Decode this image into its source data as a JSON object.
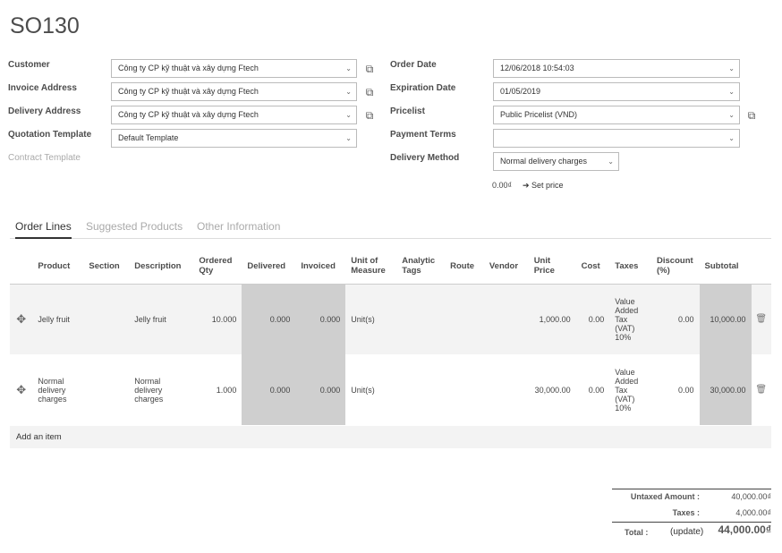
{
  "order": {
    "name": "SO130"
  },
  "left_fields": {
    "customer": {
      "label": "Customer",
      "value": "Công ty CP kỹ thuật và xây dựng Ftech"
    },
    "invoice_address": {
      "label": "Invoice Address",
      "value": "Công ty CP kỹ thuật và xây dựng Ftech"
    },
    "delivery_address": {
      "label": "Delivery Address",
      "value": "Công ty CP kỹ thuật và xây dựng Ftech"
    },
    "quotation_template": {
      "label": "Quotation Template",
      "value": "Default Template"
    },
    "contract_template": {
      "label": "Contract Template"
    }
  },
  "right_fields": {
    "order_date": {
      "label": "Order Date",
      "value": "12/06/2018 10:54:03"
    },
    "expiration_date": {
      "label": "Expiration Date",
      "value": "01/05/2019"
    },
    "pricelist": {
      "label": "Pricelist",
      "value": "Public Pricelist (VND)"
    },
    "payment_terms": {
      "label": "Payment Terms",
      "value": ""
    },
    "delivery_method": {
      "label": "Delivery Method",
      "value": "Normal delivery charges"
    },
    "delivery_amount": "0.00₫",
    "set_price_label": "➔ Set price"
  },
  "tabs": [
    "Order Lines",
    "Suggested Products",
    "Other Information"
  ],
  "columns": {
    "product": "Product",
    "section": "Section",
    "description": "Description",
    "ordered_qty": "Ordered Qty",
    "delivered": "Delivered",
    "invoiced": "Invoiced",
    "uom": "Unit of Measure",
    "analytic_tags": "Analytic Tags",
    "route": "Route",
    "vendor": "Vendor",
    "unit_price": "Unit Price",
    "cost": "Cost",
    "taxes": "Taxes",
    "discount": "Discount (%)",
    "subtotal": "Subtotal"
  },
  "lines": [
    {
      "product": "Jelly fruit",
      "section": "",
      "description": "Jelly fruit",
      "ordered_qty": "10.000",
      "delivered": "0.000",
      "invoiced": "0.000",
      "uom": "Unit(s)",
      "analytic_tags": "",
      "route": "",
      "vendor": "",
      "unit_price": "1,000.00",
      "cost": "0.00",
      "taxes": "Value Added Tax (VAT) 10%",
      "discount": "0.00",
      "subtotal": "10,000.00"
    },
    {
      "product": "Normal delivery charges",
      "section": "",
      "description": "Normal delivery charges",
      "ordered_qty": "1.000",
      "delivered": "0.000",
      "invoiced": "0.000",
      "uom": "Unit(s)",
      "analytic_tags": "",
      "route": "",
      "vendor": "",
      "unit_price": "30,000.00",
      "cost": "0.00",
      "taxes": "Value Added Tax (VAT) 10%",
      "discount": "0.00",
      "subtotal": "30,000.00"
    }
  ],
  "add_item_label": "Add an item",
  "totals": {
    "untaxed_label": "Untaxed Amount :",
    "untaxed_value": "40,000.00₫",
    "taxes_label": "Taxes :",
    "taxes_value": "4,000.00₫",
    "total_label": "Total :",
    "update_label": "(update)",
    "total_value": "44,000.00₫"
  },
  "icons": {
    "dropdown": "chevron-down-icon",
    "external": "external-link-icon",
    "drag": "drag-handle-icon",
    "delete": "trash-icon"
  }
}
